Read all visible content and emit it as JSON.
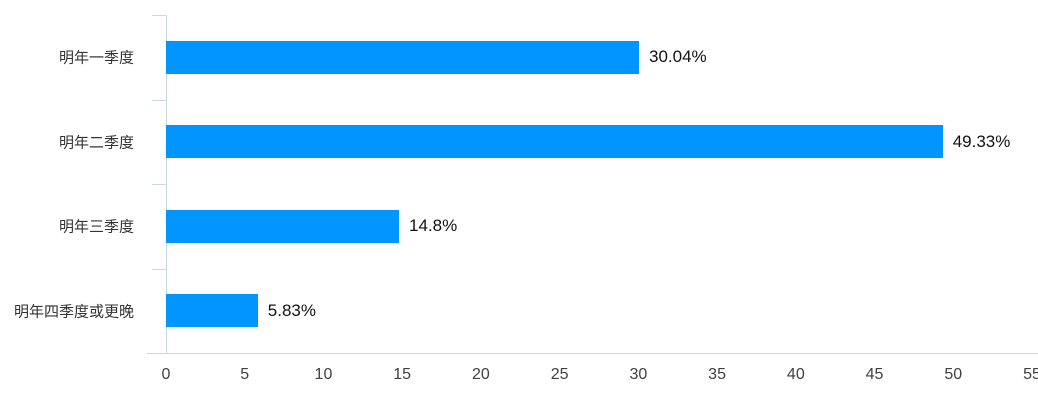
{
  "chart_data": {
    "type": "bar",
    "orientation": "horizontal",
    "title": "",
    "xlabel": "",
    "ylabel": "",
    "categories": [
      "明年一季度",
      "明年二季度",
      "明年三季度",
      "明年四季度或更晚"
    ],
    "values": [
      30.04,
      49.33,
      14.8,
      5.83
    ],
    "value_labels": [
      "30.04%",
      "49.33%",
      "14.8%",
      "5.83%"
    ],
    "x_ticks": [
      0,
      5,
      10,
      15,
      20,
      25,
      30,
      35,
      40,
      45,
      50,
      55
    ],
    "xlim": [
      0,
      55
    ],
    "grid": false,
    "legend_position": "none",
    "bar_color": "#0295fd",
    "axis_line_color": "#cdd6e4",
    "category_label_color": "#333333",
    "value_label_color": "#111111",
    "tick_label_color": "#404040"
  }
}
